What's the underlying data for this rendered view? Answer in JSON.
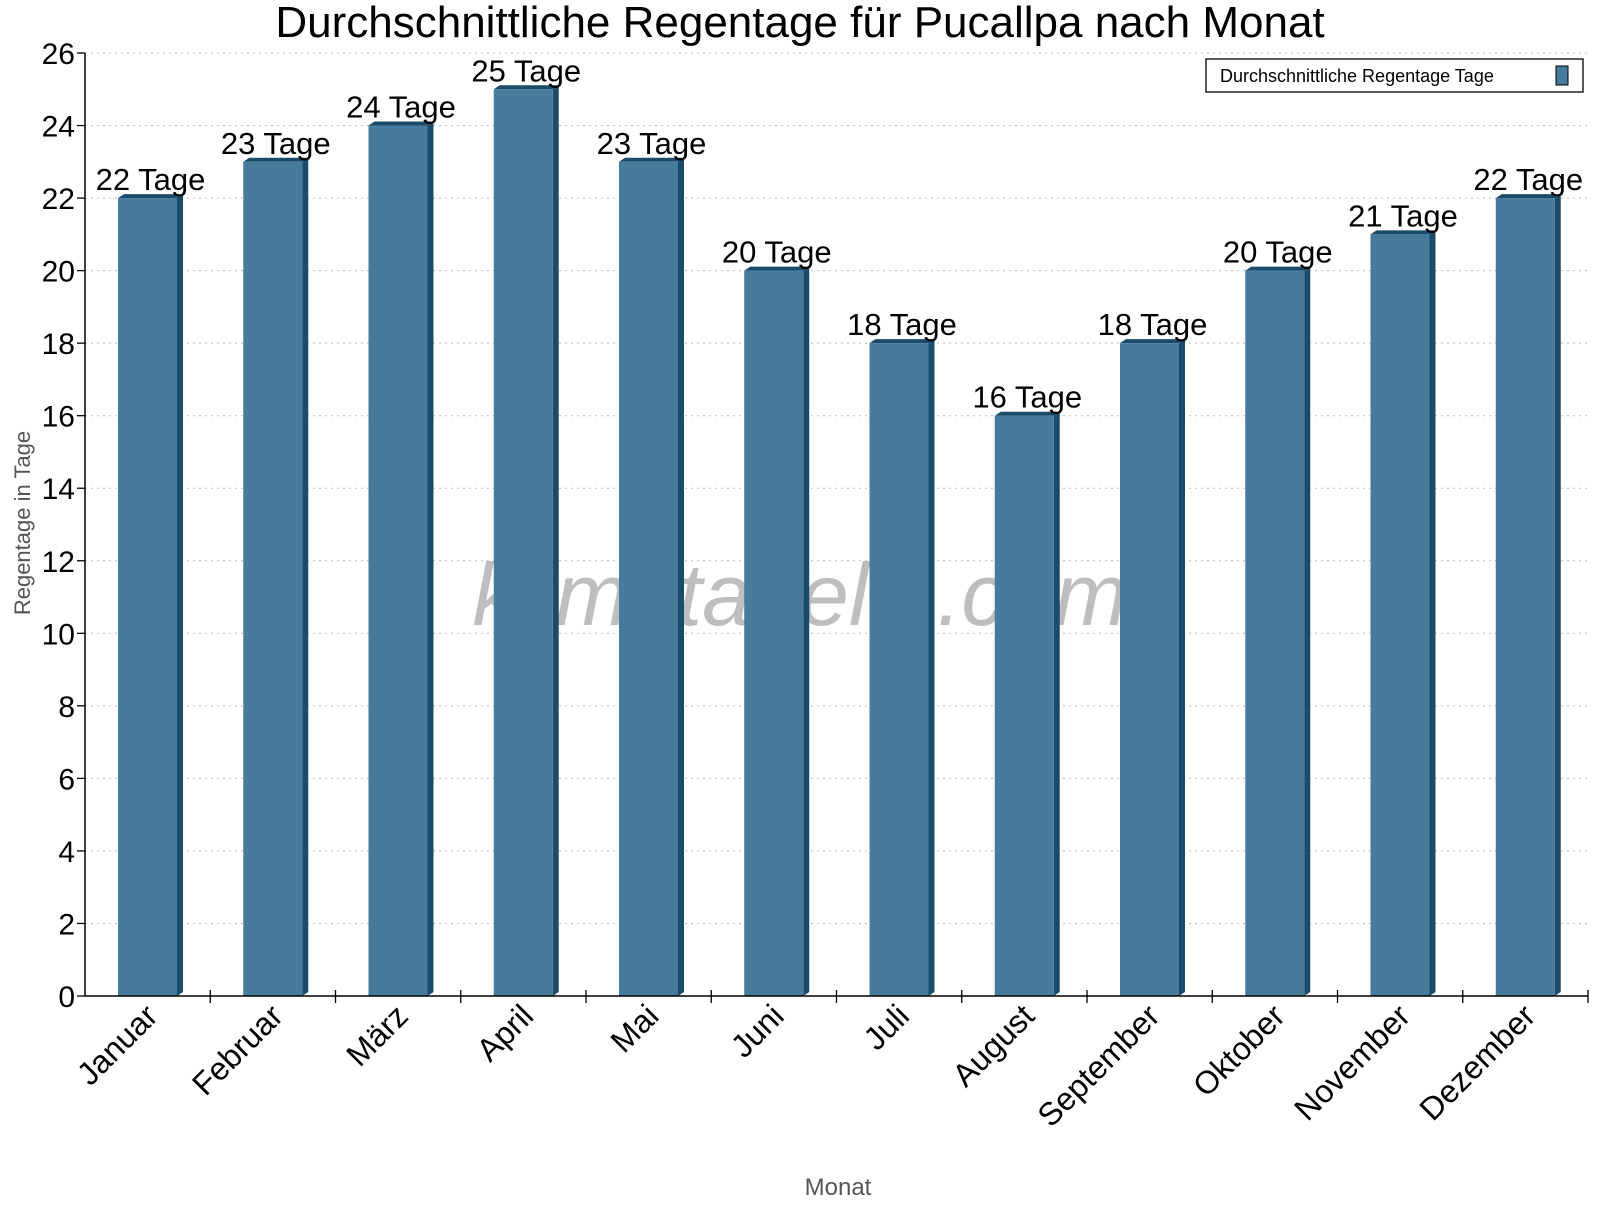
{
  "chart_data": {
    "type": "bar",
    "title": "Durchschnittliche Regentage für Pucallpa nach Monat",
    "xlabel": "Monat",
    "ylabel": "Regentage in Tage",
    "categories": [
      "Januar",
      "Februar",
      "März",
      "April",
      "Mai",
      "Juni",
      "Juli",
      "August",
      "September",
      "Oktober",
      "November",
      "Dezember"
    ],
    "series": [
      {
        "name": "Durchschnittliche Regentage Tage",
        "values": [
          22,
          23,
          24,
          25,
          23,
          20,
          18,
          16,
          18,
          20,
          21,
          22
        ]
      }
    ],
    "data_labels": [
      "22 Tage",
      "23 Tage",
      "24 Tage",
      "25 Tage",
      "23 Tage",
      "20 Tage",
      "18 Tage",
      "16 Tage",
      "18 Tage",
      "20 Tage",
      "21 Tage",
      "22 Tage"
    ],
    "ylim": [
      0,
      26
    ],
    "yticks": [
      0,
      2,
      4,
      6,
      8,
      10,
      12,
      14,
      16,
      18,
      20,
      22,
      24,
      26
    ],
    "grid": true,
    "legend_position": "top-right",
    "colors": {
      "bar": "#477b9c",
      "bar_side": "#1b4b6b"
    },
    "watermark": "klimatabelle.com"
  }
}
